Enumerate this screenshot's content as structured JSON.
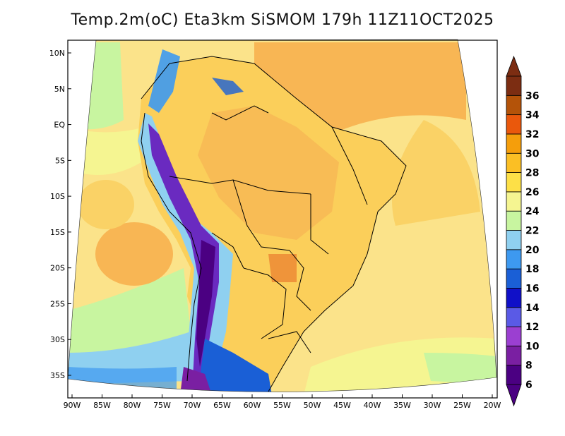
{
  "title": "Temp.2m(oC) Eta3km SiSMOM 179h 11Z11OCT2025",
  "map": {
    "projection": "lambert-like curved domain",
    "lon_ticks": [
      "90W",
      "85W",
      "80W",
      "75W",
      "70W",
      "65W",
      "60W",
      "55W",
      "50W",
      "45W",
      "40W",
      "35W",
      "30W",
      "25W",
      "20W"
    ],
    "lat_ticks": [
      "10N",
      "5N",
      "EQ",
      "5S",
      "10S",
      "15S",
      "20S",
      "25S",
      "30S",
      "35S"
    ]
  },
  "colorbar": {
    "labels": [
      "6",
      "8",
      "10",
      "12",
      "14",
      "16",
      "18",
      "20",
      "22",
      "24",
      "26",
      "28",
      "30",
      "32",
      "34",
      "36"
    ],
    "colors": [
      "#4b0082",
      "#7a1fa2",
      "#9b3fd1",
      "#5a5ae6",
      "#1010c8",
      "#1a5fd6",
      "#3d99f0",
      "#8fd0f0",
      "#c8f5a0",
      "#f5f591",
      "#fde047",
      "#fbbf24",
      "#f59e0b",
      "#ea580c",
      "#b45309",
      "#7c2d12"
    ]
  }
}
